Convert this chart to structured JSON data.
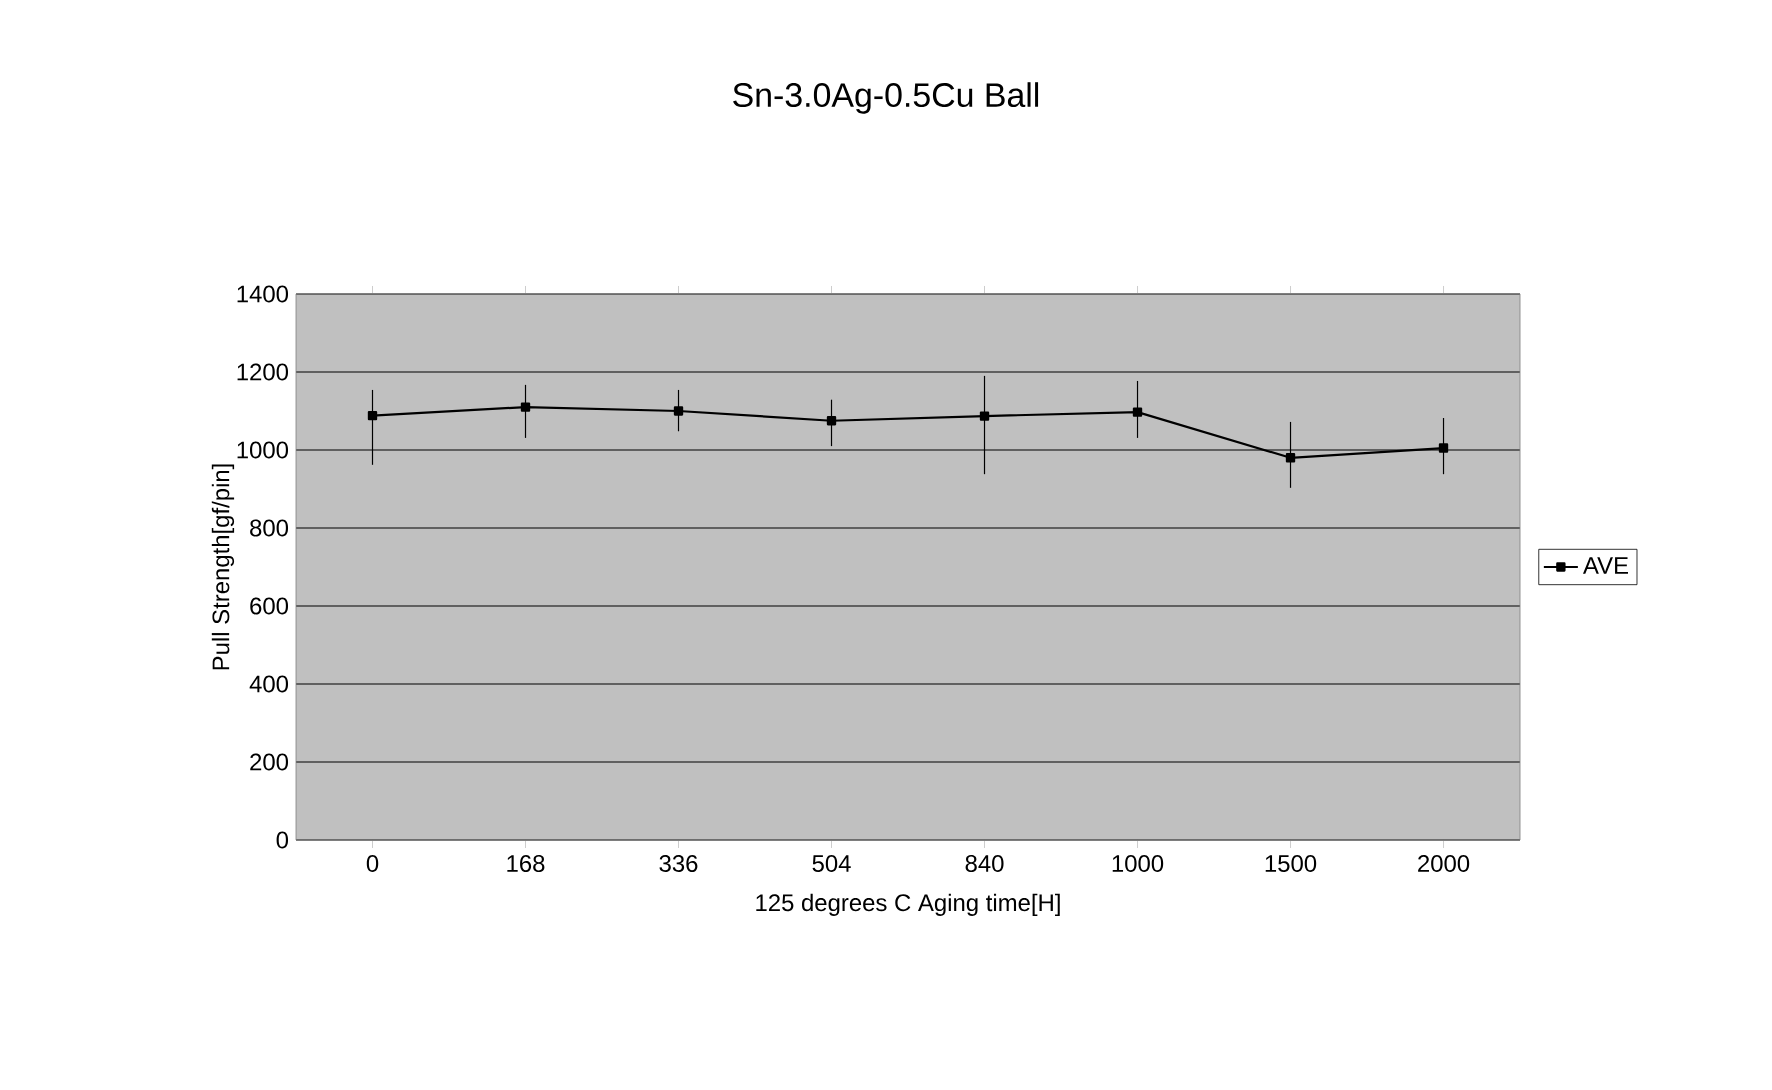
{
  "chart_data": {
    "type": "line",
    "title": "Sn-3.0Ag-0.5Cu Ball",
    "xlabel": "125 degrees C Aging time[H]",
    "ylabel": "Pull Strength[gf/pin]",
    "categories": [
      "0",
      "168",
      "336",
      "504",
      "840",
      "1000",
      "1500",
      "2000"
    ],
    "series": [
      {
        "name": "AVE",
        "color": "#000000",
        "values": [
          1088,
          1110,
          1100,
          1075,
          1087,
          1097,
          980,
          1005
        ],
        "errors": [
          [
            962,
            1154
          ],
          [
            1031,
            1167
          ],
          [
            1048,
            1154
          ],
          [
            1010,
            1129
          ],
          [
            938,
            1190
          ],
          [
            1031,
            1177
          ],
          [
            903,
            1072
          ],
          [
            938,
            1082
          ]
        ]
      }
    ],
    "ylim": [
      0,
      1400
    ],
    "yticks": [
      0,
      200,
      400,
      600,
      800,
      1000,
      1200,
      1400
    ],
    "grid": "y",
    "legend": "right",
    "marker": "square",
    "line_style": "solid"
  }
}
